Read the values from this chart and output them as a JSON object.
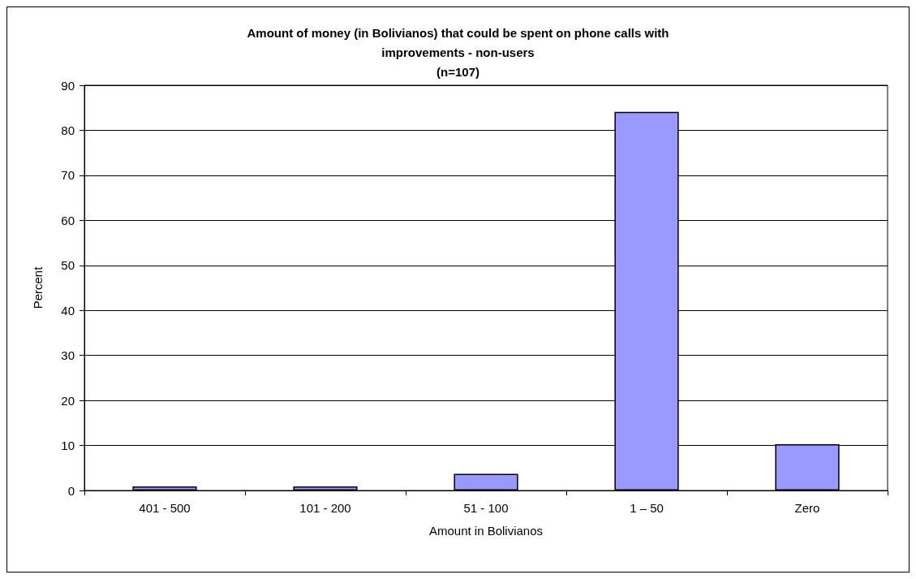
{
  "chart_data": {
    "type": "bar",
    "title": "Amount of money (in Bolivianos) that could be spent on phone calls with\nimprovements - non-users\n(n=107)",
    "xlabel": "Amount in Bolivianos",
    "ylabel": "Percent",
    "categories": [
      "401 - 500",
      "101 - 200",
      "51 - 100",
      "1 – 50",
      "Zero"
    ],
    "values": [
      0.9,
      0.9,
      3.7,
      84.1,
      10.3
    ],
    "color": "#9999ff",
    "ylim": [
      0,
      90
    ],
    "yticks": [
      0,
      10,
      20,
      30,
      40,
      50,
      60,
      70,
      80,
      90
    ],
    "grid": "y"
  }
}
